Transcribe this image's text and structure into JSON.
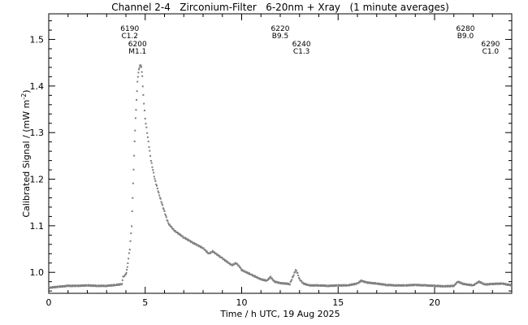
{
  "chart_data": {
    "type": "scatter",
    "title": "Channel 2-4   Zirconium-Filter   6-20nm + Xray   (1 minute averages)",
    "xlabel": "Time / h UTC, 19 Aug 2025",
    "ylabel": "Calibrated Signal / (mW m",
    "ylabel_sup": "-2",
    "ylabel_close": ")",
    "xlim": [
      0,
      24
    ],
    "ylim": [
      0.955,
      1.555
    ],
    "x_ticks": [
      0,
      5,
      10,
      15,
      20
    ],
    "x_tick_labels": [
      "0",
      "5",
      "10",
      "15",
      "20"
    ],
    "y_ticks": [
      1.0,
      1.1,
      1.2,
      1.3,
      1.4,
      1.5
    ],
    "y_tick_labels": [
      "1.0",
      "1.1",
      "1.2",
      "1.3",
      "1.4",
      "1.5"
    ],
    "grid": false,
    "marker_color": "#7f7f7f",
    "annotations": [
      {
        "x": 4.2,
        "level": 0,
        "lines": [
          "6190",
          "C1.2"
        ]
      },
      {
        "x": 4.6,
        "level": 1,
        "lines": [
          "6200",
          "M1.1"
        ]
      },
      {
        "x": 12.0,
        "level": 0,
        "lines": [
          "6220",
          "B9.5"
        ]
      },
      {
        "x": 13.1,
        "level": 1,
        "lines": [
          "6240",
          "C1.3"
        ]
      },
      {
        "x": 21.6,
        "level": 0,
        "lines": [
          "6280",
          "B9.0"
        ]
      },
      {
        "x": 22.9,
        "level": 1,
        "lines": [
          "6290",
          "C1.0"
        ]
      }
    ],
    "series": [
      {
        "x": [
          0,
          0.5,
          1,
          1.5,
          2,
          2.5,
          3,
          3.5,
          3.8,
          3.85,
          4.0,
          4.05,
          4.1,
          4.2,
          4.3,
          4.35,
          4.4,
          4.45,
          4.5,
          4.55,
          4.6,
          4.65,
          4.7,
          4.75,
          4.8,
          4.85,
          4.9,
          5.0,
          5.1,
          5.2,
          5.3,
          5.5,
          5.7,
          6.0,
          6.2,
          6.5,
          7.0,
          7.5,
          8.0,
          8.3,
          8.5,
          9.0,
          9.5,
          9.7,
          9.9,
          10.0,
          10.5,
          11.0,
          11.3,
          11.5,
          11.7,
          12.0,
          12.5,
          12.7,
          12.8,
          12.9,
          13.0,
          13.2,
          13.5,
          14.0,
          14.5,
          15.0,
          15.5,
          16.0,
          16.2,
          16.5,
          17.0,
          17.5,
          18.0,
          18.5,
          19.0,
          19.5,
          20.0,
          20.5,
          21.0,
          21.2,
          21.5,
          22.0,
          22.3,
          22.6,
          23.0,
          23.5,
          24.0
        ],
        "y": [
          0.967,
          0.969,
          0.971,
          0.971,
          0.972,
          0.971,
          0.971,
          0.973,
          0.975,
          0.99,
          0.995,
          1.005,
          1.02,
          1.05,
          1.1,
          1.16,
          1.22,
          1.28,
          1.33,
          1.37,
          1.41,
          1.43,
          1.44,
          1.445,
          1.44,
          1.42,
          1.38,
          1.33,
          1.3,
          1.27,
          1.24,
          1.2,
          1.17,
          1.13,
          1.105,
          1.09,
          1.075,
          1.063,
          1.052,
          1.04,
          1.045,
          1.03,
          1.015,
          1.02,
          1.012,
          1.005,
          0.995,
          0.985,
          0.982,
          0.99,
          0.98,
          0.977,
          0.975,
          0.995,
          1.005,
          0.998,
          0.985,
          0.976,
          0.972,
          0.972,
          0.971,
          0.972,
          0.972,
          0.976,
          0.982,
          0.978,
          0.976,
          0.973,
          0.972,
          0.972,
          0.973,
          0.972,
          0.971,
          0.97,
          0.971,
          0.98,
          0.975,
          0.972,
          0.98,
          0.974,
          0.975,
          0.976,
          0.972
        ]
      }
    ]
  }
}
